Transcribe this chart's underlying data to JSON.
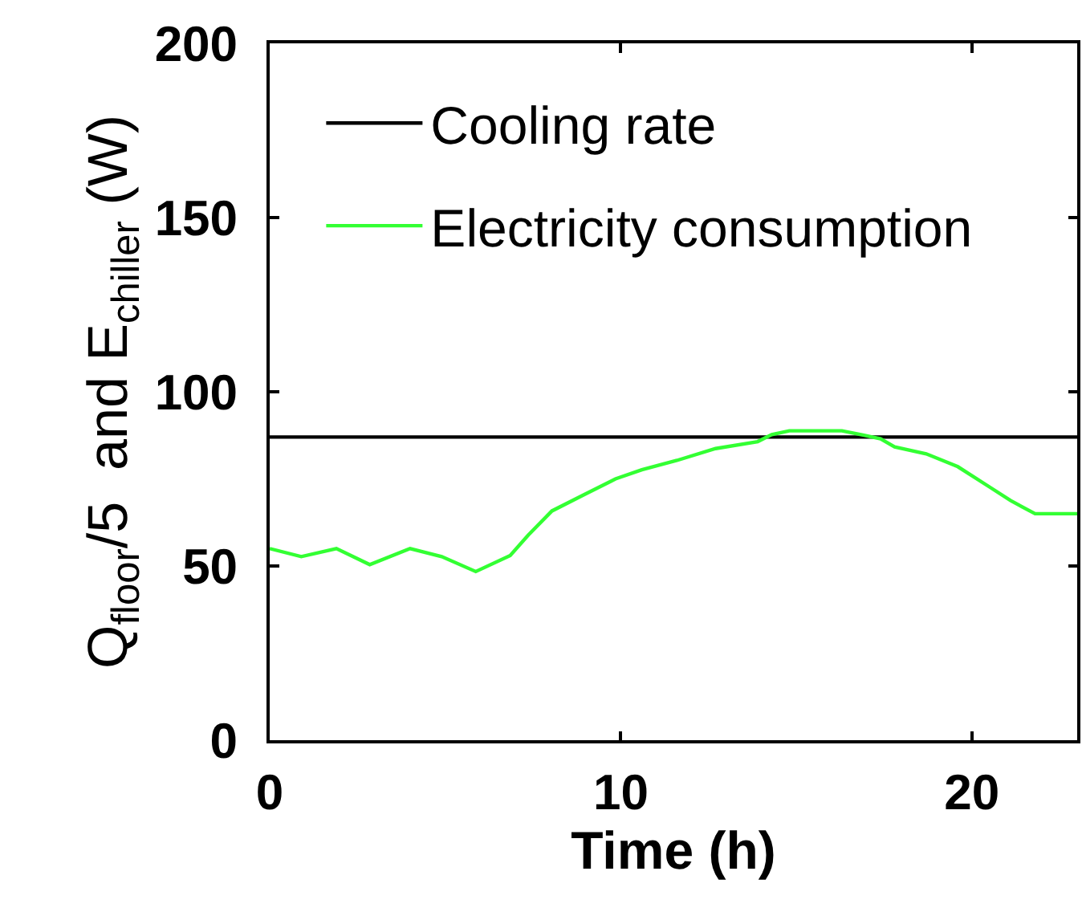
{
  "chart_data": {
    "type": "line",
    "xlabel": "Time (h)",
    "ylabel": "Q$_{floor}$/5  and E$_{chiller}$ (W)",
    "xlim": [
      0,
      23
    ],
    "xticks": [
      0,
      10,
      20
    ],
    "ylim": [
      0,
      200
    ],
    "yticks": [
      0,
      50,
      100,
      150,
      200
    ],
    "grid": false,
    "legend": "top left",
    "marker": "none",
    "line_style": "solid",
    "series": [
      {
        "name": "Cooling rate",
        "color": "#000000",
        "x": [
          0,
          23
        ],
        "values": [
          87,
          87
        ]
      },
      {
        "name": "Electricity consumption",
        "color": "#33ff33",
        "x": [
          0,
          0.9,
          1.9,
          2.85,
          4.0,
          4.9,
          5.87,
          6.85,
          7.36,
          8.04,
          8.94,
          9.85,
          10.6,
          11.6,
          12.7,
          13.9,
          14.3,
          14.8,
          16.3,
          16.9,
          17.4,
          17.8,
          18.7,
          19.6,
          20.5,
          21.1,
          21.8,
          23
        ],
        "values": [
          55,
          52.7,
          55,
          50.4,
          55,
          52.7,
          48.4,
          53,
          58.8,
          65.8,
          70.4,
          75,
          77.6,
          80.3,
          83.7,
          85.7,
          87.7,
          88.8,
          88.8,
          87.6,
          86.5,
          84.2,
          82.2,
          78.5,
          72.7,
          68.8,
          65,
          65
        ]
      }
    ]
  }
}
